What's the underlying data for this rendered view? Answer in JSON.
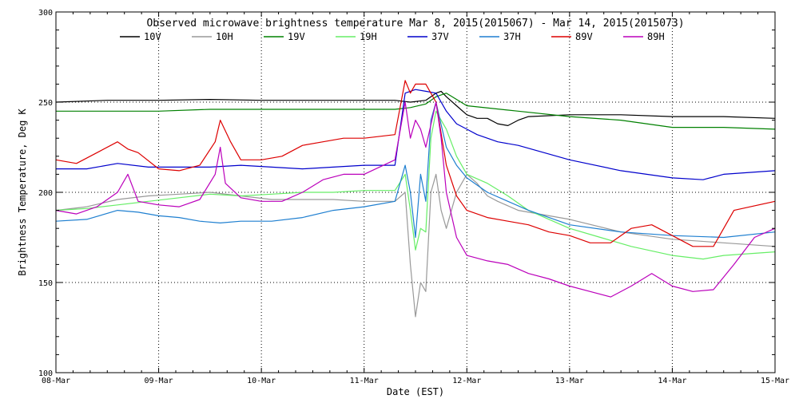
{
  "chart_data": {
    "type": "line",
    "title": "Observed microwave brightness temperature Mar  8, 2015(2015067) - Mar 14, 2015(2015073)",
    "xlabel": "Date (EST)",
    "ylabel": "Brightness Temperature, Deg K",
    "xlim": [
      0,
      7
    ],
    "ylim": [
      100,
      300
    ],
    "grid": true,
    "legend_position": "top",
    "x_ticks": [
      {
        "value": 0,
        "label": "08-Mar"
      },
      {
        "value": 1,
        "label": "09-Mar"
      },
      {
        "value": 2,
        "label": "10-Mar"
      },
      {
        "value": 3,
        "label": "11-Mar"
      },
      {
        "value": 4,
        "label": "12-Mar"
      },
      {
        "value": 5,
        "label": "13-Mar"
      },
      {
        "value": 6,
        "label": "14-Mar"
      },
      {
        "value": 7,
        "label": "15-Mar"
      }
    ],
    "y_ticks": [
      {
        "value": 100,
        "label": "100"
      },
      {
        "value": 150,
        "label": "150"
      },
      {
        "value": 200,
        "label": "200"
      },
      {
        "value": 250,
        "label": "250"
      },
      {
        "value": 300,
        "label": "300"
      }
    ],
    "series": [
      {
        "name": "10V",
        "color": "#000000",
        "x": [
          0,
          0.5,
          1,
          1.5,
          2,
          2.5,
          3,
          3.3,
          3.45,
          3.6,
          3.7,
          3.75,
          3.8,
          3.9,
          4.0,
          4.1,
          4.2,
          4.3,
          4.4,
          4.5,
          4.6,
          5.0,
          5.5,
          6.0,
          6.5,
          7.0
        ],
        "y": [
          250,
          251,
          251,
          251.5,
          251,
          251,
          251,
          251,
          250,
          251,
          255,
          256,
          253,
          248,
          243,
          241,
          241,
          238,
          237,
          240,
          242,
          243,
          243,
          242,
          242,
          241
        ]
      },
      {
        "name": "10H",
        "color": "#999999",
        "x": [
          0,
          0.3,
          0.6,
          0.9,
          1.2,
          1.5,
          1.8,
          2.1,
          2.4,
          2.7,
          3.0,
          3.3,
          3.4,
          3.45,
          3.5,
          3.55,
          3.6,
          3.65,
          3.7,
          3.75,
          3.8,
          3.9,
          4.0,
          4.1,
          4.2,
          4.3,
          4.5,
          4.7,
          5.0,
          5.5,
          6.0,
          6.5,
          7.0
        ],
        "y": [
          190,
          192,
          196,
          198,
          199,
          200,
          198,
          196,
          196,
          196,
          195,
          195,
          200,
          160,
          131,
          150,
          145,
          200,
          210,
          190,
          180,
          200,
          210,
          205,
          198,
          195,
          190,
          188,
          185,
          178,
          174,
          172,
          170
        ]
      },
      {
        "name": "19V",
        "color": "#008000",
        "x": [
          0,
          0.5,
          1,
          1.5,
          2,
          2.5,
          3,
          3.3,
          3.45,
          3.6,
          3.7,
          3.8,
          4.0,
          4.5,
          5.0,
          5.5,
          6.0,
          6.5,
          7.0
        ],
        "y": [
          245,
          245,
          245,
          246,
          246,
          246,
          246,
          246,
          247,
          249,
          253,
          255,
          248,
          245,
          242,
          240,
          236,
          236,
          235
        ]
      },
      {
        "name": "19H",
        "color": "#66ee66",
        "x": [
          0,
          0.3,
          0.6,
          0.9,
          1.2,
          1.5,
          1.8,
          2.1,
          2.4,
          2.7,
          3.0,
          3.3,
          3.4,
          3.45,
          3.5,
          3.55,
          3.6,
          3.65,
          3.7,
          3.8,
          3.9,
          4.0,
          4.2,
          4.4,
          4.6,
          4.8,
          5.0,
          5.3,
          5.6,
          6.0,
          6.3,
          6.5,
          7.0
        ],
        "y": [
          190,
          191,
          193,
          195,
          197,
          199,
          198,
          199,
          200,
          200,
          201,
          201,
          210,
          190,
          168,
          180,
          178,
          230,
          245,
          235,
          220,
          210,
          205,
          198,
          190,
          185,
          180,
          175,
          170,
          165,
          163,
          165,
          167
        ]
      },
      {
        "name": "37V",
        "color": "#0000cc",
        "x": [
          0,
          0.3,
          0.6,
          0.9,
          1.2,
          1.5,
          1.8,
          2.1,
          2.4,
          2.7,
          3.0,
          3.3,
          3.4,
          3.5,
          3.6,
          3.7,
          3.8,
          3.9,
          4.0,
          4.1,
          4.3,
          4.5,
          5.0,
          5.5,
          6.0,
          6.3,
          6.5,
          7.0
        ],
        "y": [
          213,
          213,
          216,
          214,
          214,
          214,
          215,
          214,
          213,
          214,
          215,
          215,
          255,
          257,
          256,
          255,
          245,
          238,
          235,
          232,
          228,
          226,
          218,
          212,
          208,
          207,
          210,
          212
        ]
      },
      {
        "name": "37H",
        "color": "#1e7fd0",
        "x": [
          0,
          0.3,
          0.6,
          0.8,
          1.0,
          1.2,
          1.4,
          1.6,
          1.8,
          2.1,
          2.4,
          2.7,
          3.0,
          3.3,
          3.4,
          3.45,
          3.5,
          3.55,
          3.6,
          3.65,
          3.7,
          3.8,
          3.9,
          4.0,
          4.2,
          4.4,
          4.6,
          4.8,
          5.0,
          5.5,
          6.0,
          6.5,
          7.0
        ],
        "y": [
          184,
          185,
          190,
          189,
          187,
          186,
          184,
          183,
          184,
          184,
          186,
          190,
          192,
          195,
          215,
          200,
          175,
          210,
          195,
          240,
          250,
          225,
          215,
          208,
          200,
          195,
          190,
          186,
          182,
          178,
          176,
          175,
          178
        ]
      },
      {
        "name": "89V",
        "color": "#dd0000",
        "x": [
          0,
          0.2,
          0.4,
          0.6,
          0.7,
          0.8,
          1.0,
          1.2,
          1.4,
          1.55,
          1.6,
          1.7,
          1.8,
          2.0,
          2.2,
          2.4,
          2.6,
          2.8,
          3.0,
          3.3,
          3.4,
          3.45,
          3.5,
          3.6,
          3.7,
          3.8,
          3.9,
          4.0,
          4.2,
          4.4,
          4.6,
          4.8,
          5.0,
          5.2,
          5.4,
          5.6,
          5.8,
          6.0,
          6.2,
          6.4,
          6.6,
          7.0
        ],
        "y": [
          218,
          216,
          222,
          228,
          224,
          222,
          213,
          212,
          215,
          228,
          240,
          228,
          218,
          218,
          220,
          226,
          228,
          230,
          230,
          232,
          262,
          255,
          260,
          260,
          250,
          215,
          198,
          190,
          186,
          184,
          182,
          178,
          176,
          172,
          172,
          180,
          182,
          176,
          170,
          170,
          190,
          195
        ]
      },
      {
        "name": "89H",
        "color": "#bb00bb",
        "x": [
          0,
          0.2,
          0.4,
          0.6,
          0.7,
          0.8,
          1.0,
          1.2,
          1.4,
          1.55,
          1.6,
          1.65,
          1.8,
          2.0,
          2.2,
          2.4,
          2.6,
          2.8,
          3.0,
          3.3,
          3.4,
          3.45,
          3.5,
          3.55,
          3.6,
          3.7,
          3.75,
          3.8,
          3.9,
          4.0,
          4.2,
          4.4,
          4.6,
          4.8,
          5.0,
          5.2,
          5.4,
          5.6,
          5.8,
          6.0,
          6.2,
          6.4,
          6.6,
          6.8,
          7.0
        ],
        "y": [
          190,
          188,
          192,
          200,
          210,
          195,
          193,
          192,
          196,
          210,
          225,
          205,
          197,
          195,
          195,
          200,
          207,
          210,
          210,
          218,
          250,
          230,
          240,
          235,
          225,
          250,
          230,
          200,
          175,
          165,
          162,
          160,
          155,
          152,
          148,
          145,
          142,
          148,
          155,
          148,
          145,
          146,
          160,
          175,
          180
        ]
      }
    ]
  }
}
